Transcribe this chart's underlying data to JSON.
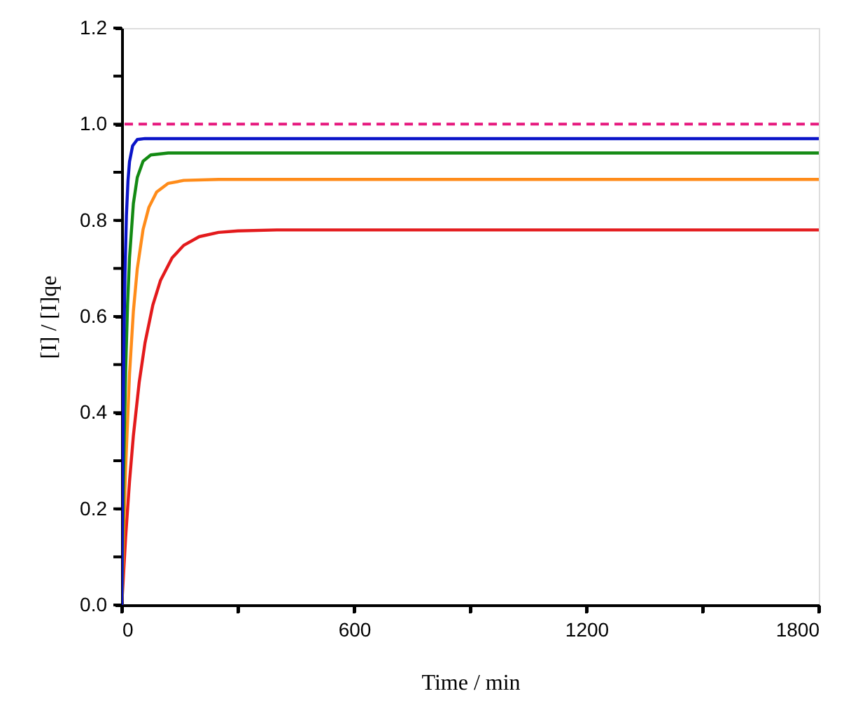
{
  "chart_data": {
    "type": "line",
    "xlabel": "Time / min",
    "ylabel": "[I] / [I]qe",
    "xlim": [
      0,
      1800
    ],
    "ylim": [
      0,
      1.2
    ],
    "xticks": [
      0,
      {
        "value": 300,
        "label": null
      },
      600,
      {
        "value": 900,
        "label": null
      },
      1200,
      {
        "value": 1500,
        "label": null
      },
      1800
    ],
    "yticks": [
      {
        "value": 0,
        "label": "0.0"
      },
      {
        "value": 0.1,
        "label": null
      },
      {
        "value": 0.2,
        "label": "0.2"
      },
      {
        "value": 0.3,
        "label": null
      },
      {
        "value": 0.4,
        "label": "0.4"
      },
      {
        "value": 0.5,
        "label": null
      },
      {
        "value": 0.6,
        "label": "0.6"
      },
      {
        "value": 0.7,
        "label": null
      },
      {
        "value": 0.8,
        "label": "0.8"
      },
      {
        "value": 0.9,
        "label": null
      },
      {
        "value": 1.0,
        "label": "1.0"
      },
      {
        "value": 1.1,
        "label": null
      },
      {
        "value": 1.2,
        "label": "1.2"
      }
    ],
    "grid": false,
    "marker": "none",
    "line_style": "solid",
    "series": [
      {
        "color": "#e31a1c",
        "x": [
          0,
          10,
          20,
          30,
          45,
          60,
          80,
          100,
          130,
          160,
          200,
          250,
          300,
          400,
          1800
        ],
        "values": [
          0,
          0.141,
          0.257,
          0.352,
          0.463,
          0.545,
          0.623,
          0.675,
          0.722,
          0.748,
          0.766,
          0.775,
          0.778,
          0.78,
          0.78
        ]
      },
      {
        "color": "#ff8c1a",
        "x": [
          0,
          5,
          10,
          20,
          30,
          40,
          55,
          70,
          90,
          120,
          160,
          250,
          1800
        ],
        "values": [
          0,
          0.157,
          0.286,
          0.48,
          0.611,
          0.699,
          0.781,
          0.827,
          0.859,
          0.877,
          0.883,
          0.885,
          0.885
        ]
      },
      {
        "color": "#138a13",
        "x": [
          0,
          3,
          6,
          10,
          15,
          20,
          30,
          40,
          55,
          75,
          120,
          1800
        ],
        "values": [
          0,
          0.185,
          0.334,
          0.487,
          0.626,
          0.722,
          0.835,
          0.889,
          0.923,
          0.936,
          0.94,
          0.94
        ]
      },
      {
        "color": "#0a14c8",
        "x": [
          0,
          2,
          4,
          6,
          8,
          12,
          16,
          20,
          28,
          40,
          60,
          1800
        ],
        "values": [
          0,
          0.251,
          0.437,
          0.575,
          0.678,
          0.81,
          0.882,
          0.922,
          0.955,
          0.968,
          0.97,
          0.97
        ]
      }
    ],
    "ref_lines": [
      {
        "axis": "y",
        "value": 1.0,
        "label": null,
        "color": "#e6197e",
        "line_style": "dashed"
      }
    ]
  }
}
